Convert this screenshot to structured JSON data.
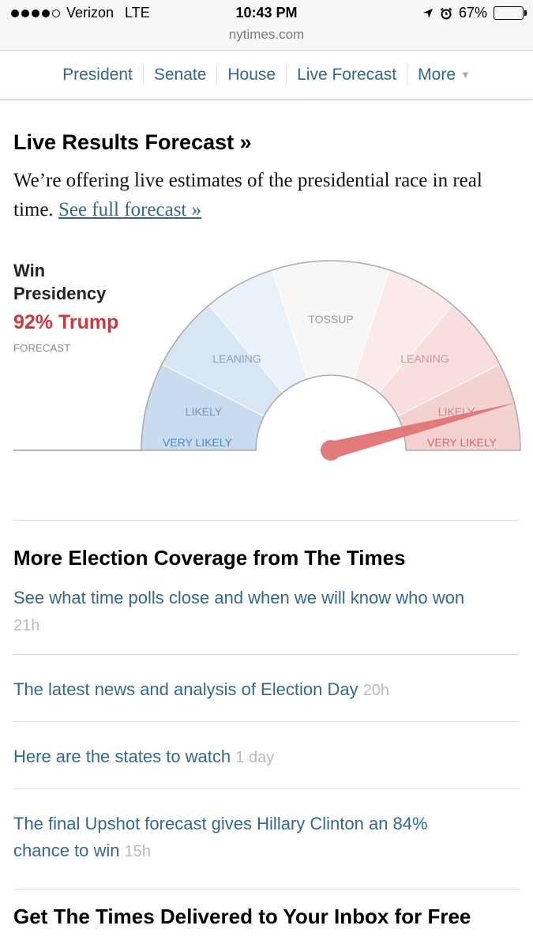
{
  "status_bar": {
    "carrier": "Verizon",
    "network": "LTE",
    "time": "10:43 PM",
    "battery": "67%",
    "battery_level": 0.67,
    "url": "nytimes.com"
  },
  "nav": {
    "items": [
      "President",
      "Senate",
      "House",
      "Live Forecast"
    ],
    "more_label": "More"
  },
  "forecast": {
    "heading": "Live Results Forecast »",
    "intro": "We’re offering live estimates of the presidential race in real time.",
    "link": "See full forecast »",
    "win_label": "Win Presidency",
    "win_value": "92% Trump",
    "win_sub": "FORECAST",
    "needle_value_percent": 92,
    "zones": {
      "tossup": "TOSSUP",
      "lean_left": "LEANING",
      "lean_right": "LEANING",
      "likely_left": "LIKELY",
      "likely_right": "LIKELY",
      "very_left": "VERY LIKELY",
      "very_right": "VERY LIKELY"
    },
    "colors": {
      "trump": "#d0363b",
      "needle": "#e27a7a",
      "blue_light": "#e9f1f9",
      "blue_mid": "#d8e6f4",
      "blue_dark": "#c8dbef",
      "red_light": "#fbeaea",
      "red_mid": "#f8dede",
      "red_dark": "#f5d2d2",
      "tossup": "#f7f7f7"
    }
  },
  "coverage": {
    "heading": "More Election Coverage from The Times",
    "stories": [
      {
        "title": "See what time polls close and when we will know who won",
        "age": "21h"
      },
      {
        "title": "The latest news and analysis of Election Day",
        "age": "20h"
      },
      {
        "title": "Here are the states to watch",
        "age": "1 day"
      },
      {
        "title": "The final Upshot forecast gives Hillary Clinton an 84% chance to win",
        "age": "15h"
      }
    ]
  },
  "inbox_heading": "Get The Times Delivered to Your Inbox for Free"
}
